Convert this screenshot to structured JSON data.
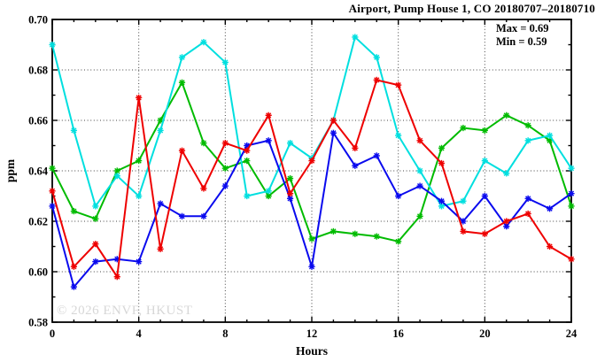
{
  "title": "Airport, Pump House 1, CO 20180707–20180710",
  "legend": {
    "max_label": "Max = 0.69",
    "min_label": "Min = 0.59"
  },
  "watermark": "© 2026 ENVF, HKUST",
  "chart_data": {
    "type": "line",
    "title": "Airport, Pump House 1, CO 20180707–20180710",
    "xlabel": "Hours",
    "ylabel": "ppm",
    "xlim": [
      0,
      24
    ],
    "ylim": [
      0.58,
      0.7
    ],
    "x_major_ticks": [
      0,
      4,
      8,
      12,
      16,
      20,
      24
    ],
    "x_minor_tick_step": 1,
    "y_major_ticks": [
      0.58,
      0.6,
      0.62,
      0.64,
      0.66,
      0.68,
      0.7
    ],
    "y_minor_tick_step": 0.01,
    "grid": {
      "style": "dotted",
      "vertical_at": [
        4,
        8,
        12,
        16,
        20
      ],
      "horizontal_at": [
        0.6,
        0.62,
        0.64,
        0.66,
        0.68
      ]
    },
    "marker": "asterisk",
    "legend_position": "top-right-inside",
    "annotations": {
      "max": "Max = 0.69",
      "min": "Min = 0.59"
    },
    "x": [
      0,
      1,
      2,
      3,
      4,
      5,
      6,
      7,
      8,
      9,
      10,
      11,
      12,
      13,
      14,
      15,
      16,
      17,
      18,
      19,
      20,
      21,
      22,
      23,
      24
    ],
    "series": [
      {
        "name": "series-green",
        "color": "#00bb00",
        "values": [
          0.641,
          0.624,
          0.621,
          0.64,
          0.644,
          0.66,
          0.675,
          0.651,
          0.641,
          0.644,
          0.63,
          0.637,
          0.613,
          0.616,
          0.615,
          0.614,
          0.612,
          0.622,
          0.649,
          0.657,
          0.656,
          0.662,
          0.658,
          0.652,
          0.626
        ]
      },
      {
        "name": "series-cyan",
        "color": "#00dfdf",
        "values": [
          0.69,
          0.656,
          0.626,
          0.638,
          0.63,
          0.656,
          0.685,
          0.691,
          0.683,
          0.63,
          0.632,
          0.651,
          0.645,
          0.66,
          0.693,
          0.685,
          0.654,
          0.64,
          0.626,
          0.628,
          0.644,
          0.639,
          0.652,
          0.654,
          0.641
        ]
      },
      {
        "name": "series-blue",
        "color": "#0a0aee",
        "values": [
          0.626,
          0.594,
          0.604,
          0.605,
          0.604,
          0.627,
          0.622,
          0.622,
          0.634,
          0.65,
          0.652,
          0.629,
          0.602,
          0.655,
          0.642,
          0.646,
          0.63,
          0.634,
          0.628,
          0.62,
          0.63,
          0.618,
          0.629,
          0.625,
          0.631
        ]
      },
      {
        "name": "series-red",
        "color": "#ee0000",
        "values": [
          0.632,
          0.602,
          0.611,
          0.598,
          0.669,
          0.609,
          0.648,
          0.633,
          0.651,
          0.648,
          0.662,
          0.631,
          0.644,
          0.66,
          0.649,
          0.676,
          0.674,
          0.652,
          0.643,
          0.616,
          0.615,
          0.62,
          0.623,
          0.61,
          0.605
        ]
      }
    ]
  }
}
